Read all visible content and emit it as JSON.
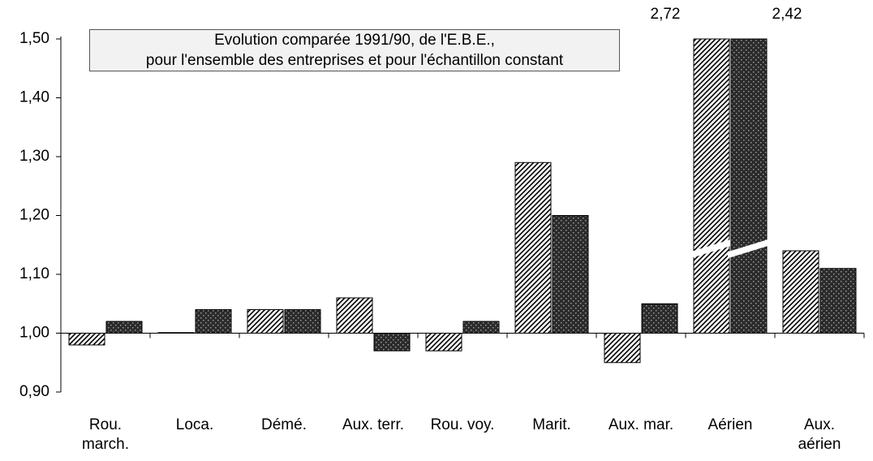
{
  "chart_data": {
    "type": "bar",
    "title": "Evolution comparée 1991/90, de l'E.B.E.,",
    "subtitle": "pour l'ensemble des entreprises et pour l'échantillon constant",
    "categories": [
      "Rou.\nmarch.",
      "Loca.",
      "Démé.",
      "Aux. terr.",
      "Rou. voy.",
      "Marit.",
      "Aux. mar.",
      "Aérien",
      "Aux.\naérien"
    ],
    "series": [
      {
        "name": null,
        "color": "#ffffff",
        "pattern": "hatch",
        "values": [
          0.98,
          1.001,
          1.04,
          1.06,
          0.97,
          1.29,
          0.95,
          2.72,
          1.14
        ],
        "value_labels": [
          null,
          null,
          null,
          null,
          null,
          null,
          null,
          "2,72",
          null
        ]
      },
      {
        "name": null,
        "color": "#2b2b2b",
        "pattern": "dots",
        "values": [
          1.02,
          1.04,
          1.04,
          0.97,
          1.02,
          1.2,
          1.05,
          2.42,
          1.11
        ],
        "value_labels": [
          null,
          null,
          null,
          null,
          null,
          null,
          null,
          "2,42",
          null
        ]
      }
    ],
    "ylim": [
      0.9,
      1.5
    ],
    "yticks": [
      {
        "value": 0.9,
        "label": "0,90"
      },
      {
        "value": 1.0,
        "label": "1,00"
      },
      {
        "value": 1.1,
        "label": "1,10"
      },
      {
        "value": 1.2,
        "label": "1,20"
      },
      {
        "value": 1.3,
        "label": "1,30"
      },
      {
        "value": 1.4,
        "label": "1,40"
      },
      {
        "value": 1.5,
        "label": "1,50"
      }
    ],
    "grid": false
  }
}
